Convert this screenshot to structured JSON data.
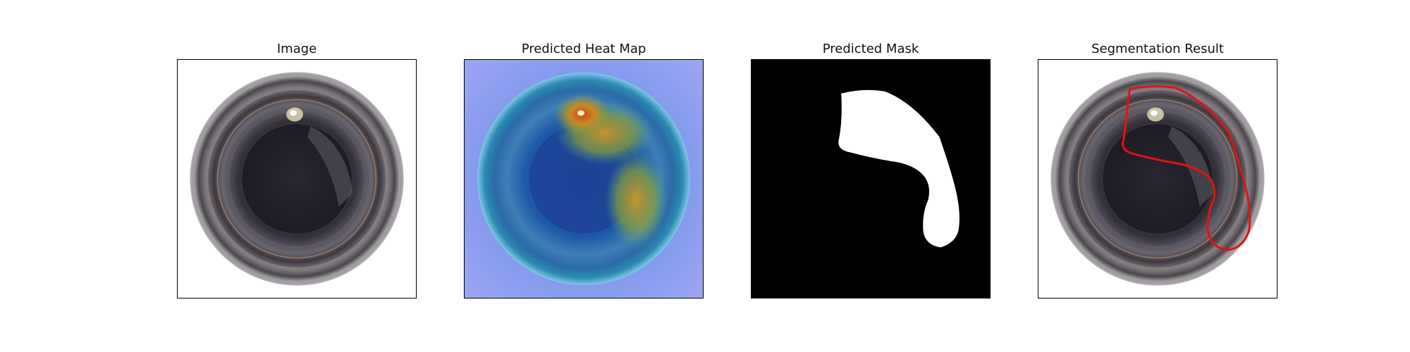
{
  "figure": {
    "panels": [
      {
        "title": "Image"
      },
      {
        "title": "Predicted Heat Map"
      },
      {
        "title": "Predicted Mask"
      },
      {
        "title": "Segmentation Result"
      }
    ],
    "colors": {
      "contour": "#e31212",
      "mask_foreground": "#ffffff",
      "mask_background": "#000000",
      "heat_hot": "#d24a16",
      "heat_cold": "#8fa0f0"
    }
  }
}
